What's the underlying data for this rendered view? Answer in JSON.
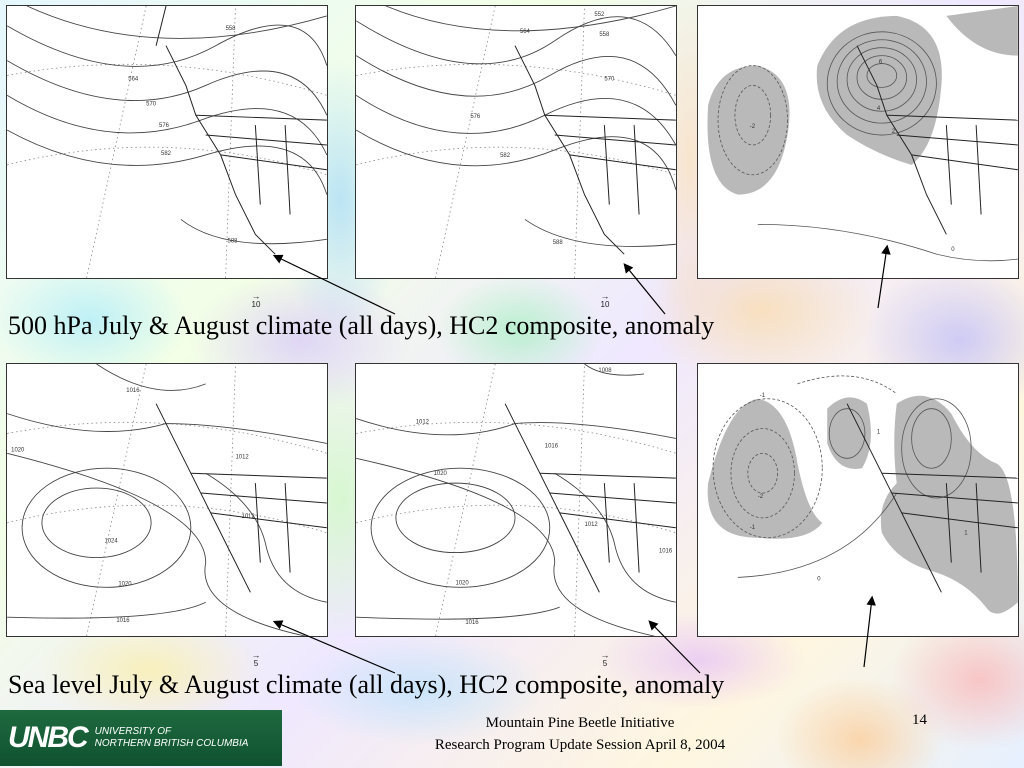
{
  "captions": {
    "top": "500 hPa July & August climate (all days), HC2 composite, anomaly",
    "bottom": "Sea level July & August climate (all days), HC2 composite, anomaly"
  },
  "panels": {
    "p1": {
      "labels": [
        "558",
        "564",
        "570",
        "576",
        "582",
        "588"
      ],
      "scale": "10"
    },
    "p2": {
      "labels": [
        "552",
        "558",
        "564",
        "570",
        "576",
        "582",
        "588"
      ],
      "scale": "10"
    },
    "p3": {
      "labels": [
        "-2",
        "6",
        "4",
        "2",
        "0"
      ]
    },
    "p4": {
      "labels": [
        "1016",
        "1012",
        "1020",
        "1024",
        "1020",
        "1016",
        "1012"
      ],
      "scale": "5"
    },
    "p5": {
      "labels": [
        "1008",
        "1012",
        "1016",
        "1020",
        "1020",
        "1016",
        "1016",
        "1012"
      ],
      "scale": "5"
    },
    "p6": {
      "labels": [
        "-2",
        "-1",
        "-1",
        "1",
        "1",
        "0"
      ]
    }
  },
  "footer": {
    "line1": "Mountain Pine Beetle Initiative",
    "line2": "Research Program Update Session April 8, 2004",
    "page": "14"
  },
  "logo": {
    "mark": "UNBC",
    "line1": "University of",
    "line2": "Northern British Columbia"
  },
  "colors": {
    "shade": "#b9b9b9",
    "logo_green": "#1f6a3f"
  }
}
